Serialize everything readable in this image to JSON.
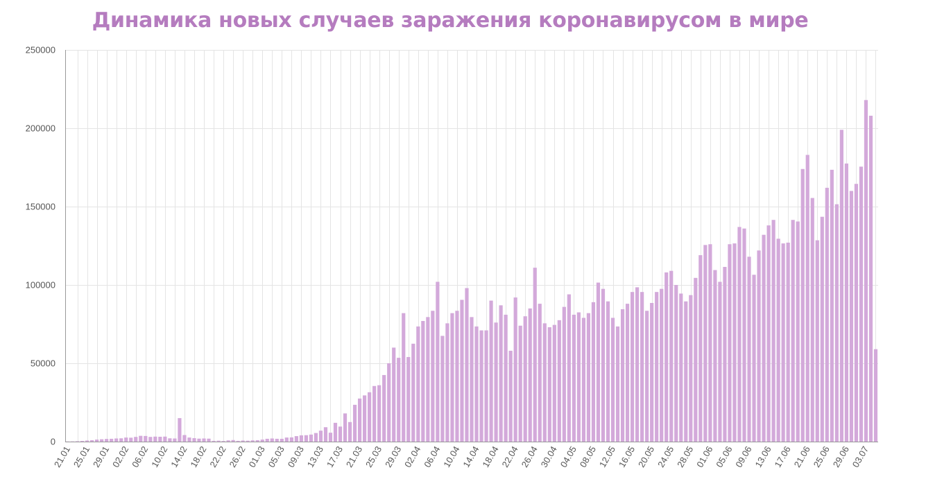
{
  "colors": {
    "bar": "#d3a9da",
    "title": "#b57cbf",
    "grid": "#e4e4e4",
    "axis": "#999999",
    "tick_text": "#555555"
  },
  "chart_data": {
    "type": "bar",
    "title": "Динамика новых случаев заражения коронавирусом в мире",
    "xlabel": "",
    "ylabel": "",
    "ylim": [
      0,
      250000
    ],
    "yticks": [
      0,
      50000,
      100000,
      150000,
      200000,
      250000
    ],
    "ytick_labels": [
      "0",
      "50000",
      "100000",
      "150000",
      "200000",
      "250000"
    ],
    "grid": true,
    "legend": "none",
    "first_date": "21.01",
    "x_label_every": 4,
    "x_tick_labels": [
      "21.01",
      "25.01",
      "29.01",
      "02.02",
      "06.02",
      "10.02",
      "14.02",
      "18.02",
      "22.02",
      "26.02",
      "01.03",
      "05.03",
      "09.03",
      "13.03",
      "17.03",
      "21.03",
      "25.03",
      "29.03",
      "02.04",
      "06.04",
      "10.04",
      "14.04",
      "18.04",
      "22.04",
      "26.04",
      "30.04",
      "04.05",
      "08.05",
      "12.05",
      "16.05",
      "20.05",
      "24.05",
      "28.05",
      "01.06",
      "05.06",
      "09.06",
      "13.06",
      "17.06",
      "21.06",
      "25.06",
      "29.06",
      "03.07"
    ],
    "values": [
      100,
      150,
      250,
      450,
      700,
      900,
      1300,
      1500,
      1700,
      1800,
      2000,
      2100,
      2600,
      2500,
      3000,
      3700,
      3600,
      3000,
      3200,
      3100,
      3200,
      2100,
      2000,
      15000,
      4200,
      2600,
      2200,
      1900,
      2000,
      1900,
      500,
      600,
      400,
      800,
      1000,
      500,
      700,
      600,
      800,
      900,
      1300,
      1800,
      2000,
      1800,
      1800,
      2600,
      2700,
      3500,
      4000,
      4100,
      4500,
      5500,
      7000,
      9200,
      5700,
      12000,
      9600,
      18000,
      12500,
      23500,
      27500,
      29500,
      31500,
      35500,
      36000,
      42500,
      50000,
      60000,
      53500,
      82000,
      54000,
      62500,
      73500,
      77000,
      79500,
      83500,
      102000,
      67500,
      75500,
      82000,
      83500,
      90500,
      98000,
      79500,
      73500,
      71000,
      71000,
      90000,
      76000,
      87000,
      81000,
      58000,
      92000,
      74000,
      80000,
      85000,
      111000,
      88000,
      75500,
      73000,
      74500,
      77500,
      86000,
      94000,
      81000,
      82500,
      79000,
      82000,
      89000,
      101500,
      97500,
      89500,
      79000,
      73500,
      84500,
      88000,
      95500,
      98500,
      95500,
      83500,
      88500,
      95500,
      97500,
      108000,
      109000,
      100000,
      94500,
      89500,
      93500,
      104500,
      119000,
      125500,
      126000,
      109500,
      102000,
      111500,
      126000,
      126500,
      137000,
      136000,
      118000,
      106500,
      122000,
      132000,
      138000,
      141500,
      129500,
      126500,
      127000,
      141500,
      140500,
      174000,
      183000,
      155500,
      128500,
      143500,
      162000,
      173500,
      151500,
      199000,
      177500,
      160000,
      164500,
      175500,
      218000,
      208000,
      59000
    ]
  }
}
